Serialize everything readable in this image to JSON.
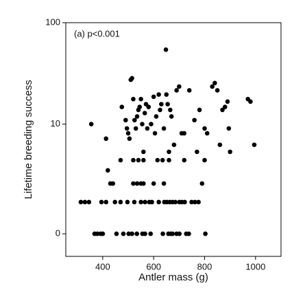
{
  "chart_data": {
    "type": "scatter",
    "annotation": "(a) p<0.001",
    "x_label": "Antler mass (g)",
    "y_label": "Lifetime breeding success",
    "yscale": "log1p",
    "color": "#000000",
    "xlim": [
      255,
      1100
    ],
    "ylim": [
      -0.39,
      100
    ],
    "xticks": [
      400,
      600,
      800,
      1000
    ],
    "yticks": [
      0,
      10,
      100
    ],
    "x": [
      368,
      379,
      392,
      400,
      454,
      481,
      502,
      515,
      534,
      556,
      566,
      588,
      636,
      658,
      668,
      674,
      690,
      701,
      728,
      738,
      803,
      314,
      330,
      346,
      395,
      413,
      448,
      470,
      497,
      524,
      550,
      566,
      583,
      593,
      620,
      642,
      652,
      663,
      674,
      685,
      701,
      711,
      722,
      749,
      762,
      776,
      430,
      440,
      520,
      535,
      550,
      560,
      600,
      640,
      790,
      470,
      520,
      540,
      560,
      615,
      635,
      660,
      720,
      800,
      355,
      413,
      420,
      475,
      490,
      495,
      500,
      505,
      510,
      515,
      520,
      525,
      530,
      535,
      540,
      545,
      550,
      555,
      560,
      565,
      570,
      575,
      580,
      590,
      600,
      605,
      610,
      620,
      625,
      630,
      640,
      648,
      650,
      655,
      660,
      665,
      670,
      680,
      690,
      700,
      710,
      720,
      740,
      760,
      770,
      780,
      800,
      810,
      830,
      840,
      850,
      860,
      870,
      880,
      890,
      895,
      900,
      970,
      980,
      995
    ],
    "values": [
      0,
      0,
      0,
      0,
      0,
      0,
      0,
      0,
      0,
      0,
      0,
      0,
      0,
      0,
      0,
      0,
      0,
      0,
      0,
      0,
      0,
      1,
      1,
      1,
      1,
      1,
      1,
      1,
      1,
      1,
      1,
      1,
      1,
      1,
      1,
      1,
      1,
      1,
      1,
      1,
      1,
      1,
      1,
      1,
      1,
      1,
      2,
      2,
      2,
      2,
      2,
      2,
      2,
      2,
      2,
      4,
      4,
      4,
      4,
      4,
      4,
      4,
      4,
      4,
      10,
      7,
      3,
      15,
      11,
      9,
      8,
      7,
      28,
      29,
      18,
      11,
      9,
      12,
      14,
      15,
      18,
      10,
      5,
      13,
      16,
      9,
      15,
      10,
      19,
      8,
      12,
      20,
      14,
      16,
      9,
      55,
      20,
      16,
      5,
      14,
      12,
      6,
      22,
      24,
      8,
      8,
      22,
      11,
      5,
      14,
      9,
      8,
      24,
      26,
      22,
      6,
      14,
      15,
      17,
      9,
      5,
      18,
      17,
      6
    ]
  }
}
